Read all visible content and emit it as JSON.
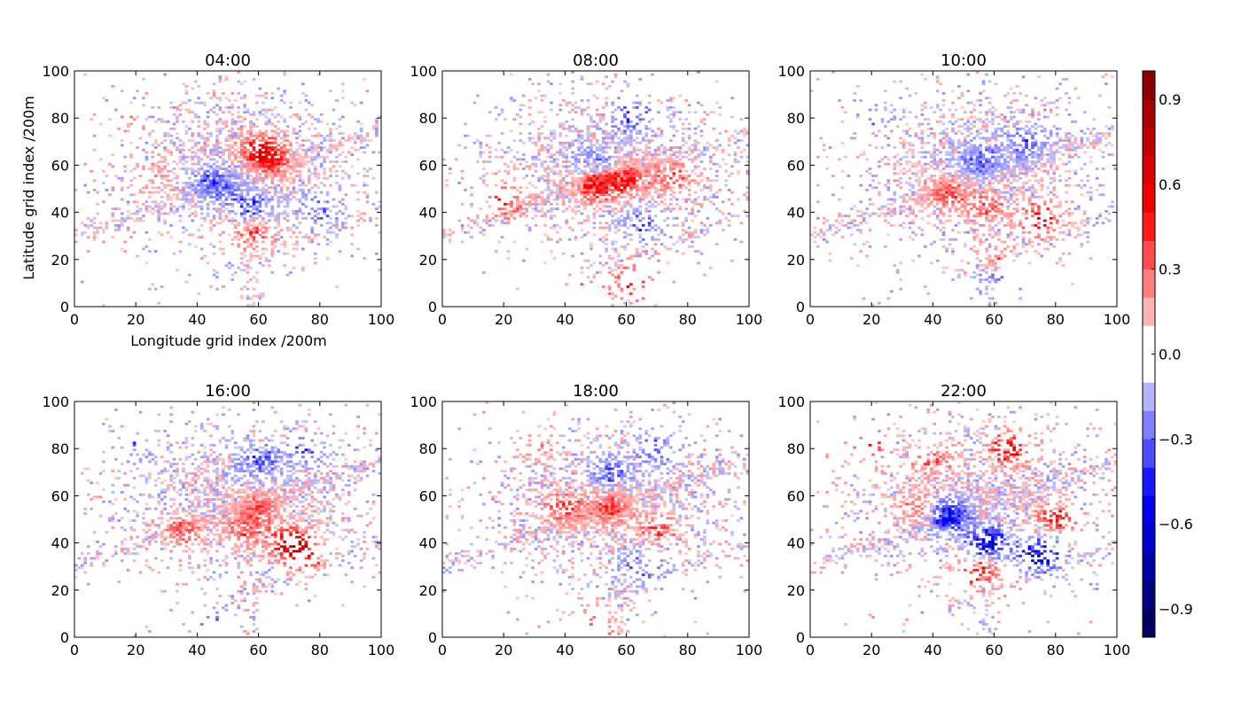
{
  "chart_data": {
    "type": "heatmap",
    "xlabel": "Longitude grid index /200m",
    "ylabel": "Latitude grid index /200m",
    "xlim": [
      0,
      100
    ],
    "ylim": [
      0,
      100
    ],
    "x_ticks": [
      "0",
      "20",
      "40",
      "60",
      "80",
      "100"
    ],
    "y_ticks": [
      "0",
      "20",
      "40",
      "60",
      "80",
      "100"
    ],
    "panels": [
      {
        "title": "04:00",
        "hotspots": [
          [
            45,
            52,
            -0.35
          ],
          [
            57,
            42,
            -0.4
          ],
          [
            80,
            42,
            -0.3
          ],
          [
            60,
            67,
            0.45
          ],
          [
            65,
            62,
            0.3
          ],
          [
            60,
            30,
            0.25
          ],
          [
            25,
            55,
            0.2
          ],
          [
            15,
            80,
            0.2
          ],
          [
            55,
            35,
            0.2
          ]
        ]
      },
      {
        "title": "08:00",
        "hotspots": [
          [
            62,
            80,
            -0.35
          ],
          [
            50,
            60,
            -0.3
          ],
          [
            65,
            35,
            -0.3
          ],
          [
            50,
            52,
            0.5
          ],
          [
            60,
            54,
            0.4
          ],
          [
            20,
            45,
            0.4
          ],
          [
            63,
            10,
            0.5
          ],
          [
            45,
            5,
            0.4
          ],
          [
            75,
            55,
            0.3
          ]
        ]
      },
      {
        "title": "10:00",
        "hotspots": [
          [
            55,
            62,
            -0.3
          ],
          [
            70,
            70,
            -0.3
          ],
          [
            20,
            80,
            -0.25
          ],
          [
            60,
            12,
            -0.25
          ],
          [
            57,
            42,
            0.3
          ],
          [
            75,
            37,
            0.5
          ],
          [
            45,
            48,
            0.3
          ],
          [
            60,
            20,
            0.3
          ]
        ]
      },
      {
        "title": "16:00",
        "hotspots": [
          [
            60,
            75,
            -0.3
          ],
          [
            75,
            80,
            -0.3
          ],
          [
            20,
            80,
            -0.25
          ],
          [
            45,
            5,
            -0.3
          ],
          [
            55,
            45,
            0.3
          ],
          [
            70,
            40,
            0.45
          ],
          [
            35,
            45,
            0.3
          ],
          [
            60,
            55,
            0.3
          ],
          [
            75,
            35,
            0.5
          ]
        ]
      },
      {
        "title": "18:00",
        "hotspots": [
          [
            55,
            70,
            -0.3
          ],
          [
            70,
            80,
            -0.3
          ],
          [
            65,
            30,
            -0.3
          ],
          [
            55,
            55,
            0.35
          ],
          [
            40,
            55,
            0.35
          ],
          [
            70,
            45,
            0.3
          ],
          [
            50,
            5,
            0.4
          ],
          [
            30,
            80,
            0.2
          ]
        ]
      },
      {
        "title": "22:00",
        "hotspots": [
          [
            45,
            52,
            -0.5
          ],
          [
            58,
            40,
            -0.55
          ],
          [
            75,
            35,
            -0.6
          ],
          [
            65,
            80,
            0.5
          ],
          [
            20,
            83,
            0.4
          ],
          [
            40,
            75,
            0.3
          ],
          [
            55,
            28,
            0.4
          ],
          [
            80,
            50,
            0.4
          ],
          [
            35,
            55,
            0.3
          ]
        ]
      }
    ],
    "colorbar": {
      "label": "",
      "range": [
        -1.0,
        1.0
      ],
      "levels": 20,
      "tick_values": [
        -0.9,
        -0.6,
        -0.3,
        0.0,
        0.3,
        0.6,
        0.9
      ],
      "tick_labels": [
        "−0.9",
        "−0.6",
        "−0.3",
        "0.0",
        "0.3",
        "0.6",
        "0.9"
      ],
      "colormap": "seismic"
    }
  }
}
